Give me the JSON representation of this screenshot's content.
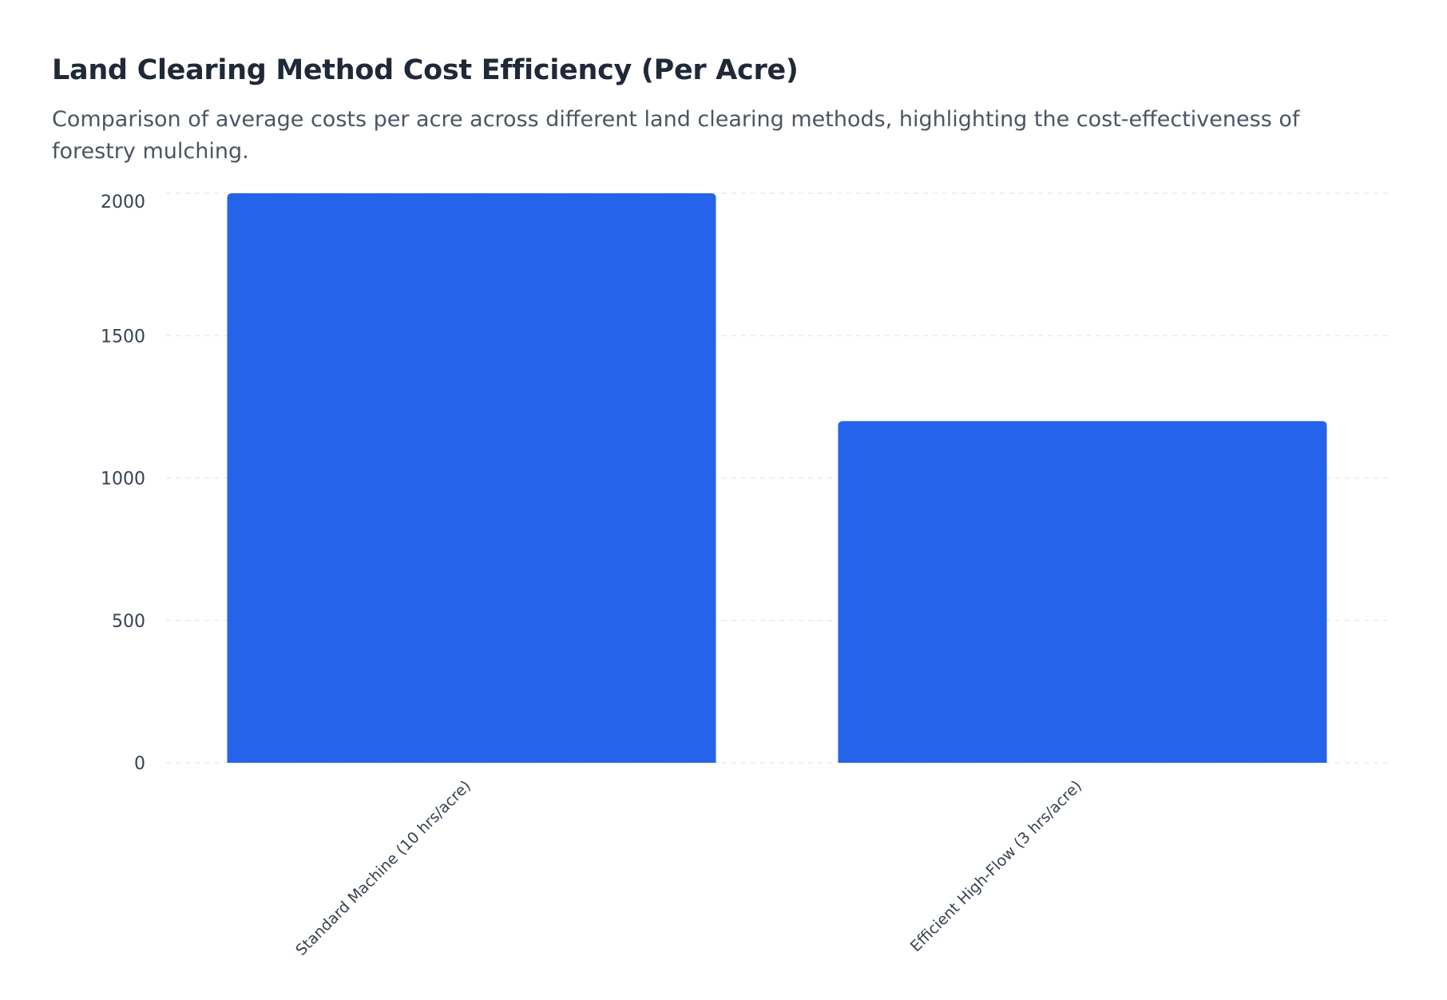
{
  "chart_data": {
    "type": "bar",
    "title": "Land Clearing Method Cost Efficiency (Per Acre)",
    "subtitle": "Comparison of average costs per acre across different land clearing methods, highlighting the cost-effectiveness of forestry mulching.",
    "categories": [
      "Standard Machine (10 hrs/acre)",
      "Efficient High-Flow (3 hrs/acre)"
    ],
    "values": [
      2000,
      1200
    ],
    "ylim": [
      0,
      2000
    ],
    "yticks": [
      0,
      500,
      1000,
      1500,
      2000
    ],
    "grid": true,
    "legend": "none",
    "xlabel": "",
    "ylabel": "",
    "colors": {
      "bar": "#2563eb",
      "grid": "#e5e7eb"
    }
  }
}
